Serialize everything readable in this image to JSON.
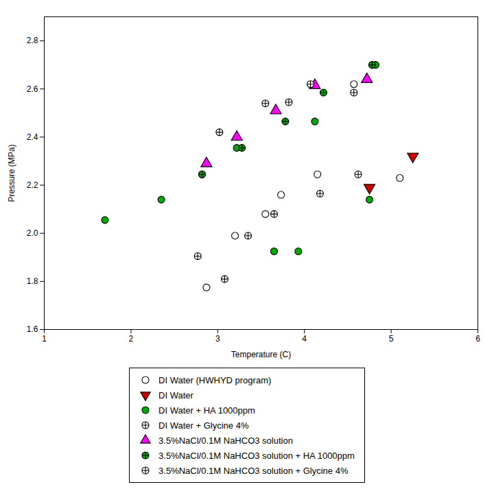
{
  "chart_data": {
    "type": "scatter",
    "xlabel": "Temperature (C)",
    "ylabel": "Pressure (MPa)",
    "xlim": [
      1,
      6
    ],
    "ylim": [
      1.6,
      2.9
    ],
    "xticks": [
      1,
      2,
      3,
      4,
      5,
      6
    ],
    "yticks": [
      1.6,
      1.8,
      {
        "value": 2.0,
        "label": "2.0"
      },
      2.2,
      2.4,
      2.6,
      2.8
    ],
    "grid": false,
    "legend": "bottom",
    "series": [
      {
        "name": "DI Water (HWHYD program)",
        "color": "white",
        "marker": "circle",
        "x": [
          2.87,
          3.2,
          3.55,
          3.73,
          4.15,
          4.57,
          5.1
        ],
        "y": [
          1.775,
          1.99,
          2.08,
          2.16,
          2.245,
          2.62,
          2.23
        ]
      },
      {
        "name": "DI Water",
        "color": "#cc0000",
        "marker": "triangle-down",
        "x": [
          4.75,
          5.25
        ],
        "y": [
          2.19,
          2.32
        ]
      },
      {
        "name": "DI Water + HA 1000ppm",
        "color": "#00aa00",
        "marker": "circle",
        "x": [
          1.7,
          2.35,
          2.82,
          3.22,
          3.65,
          3.93,
          4.12,
          4.75,
          4.82
        ],
        "y": [
          2.055,
          2.14,
          2.245,
          2.355,
          1.925,
          1.925,
          2.465,
          2.14,
          2.7
        ]
      },
      {
        "name": "DI Water + Glycine 4%",
        "color": "white",
        "marker": "circle-cross",
        "x": [
          2.77,
          3.08,
          3.35,
          3.65,
          3.82,
          4.18,
          4.62
        ],
        "y": [
          1.905,
          1.81,
          1.99,
          2.08,
          2.545,
          2.165,
          2.245
        ]
      },
      {
        "name": "3.5%NaCl/0.1M NaHCO3 solution",
        "color": "magenta",
        "marker": "triangle-up",
        "x": [
          2.87,
          3.22,
          3.67,
          4.12,
          4.72
        ],
        "y": [
          2.29,
          2.4,
          2.51,
          2.615,
          2.64
        ]
      },
      {
        "name": "3.5%NaCl/0.1M NaHCO3 solution + HA 1000ppm",
        "color": "#00aa00",
        "marker": "circle-cross",
        "x": [
          2.82,
          3.28,
          3.78,
          4.22,
          4.78
        ],
        "y": [
          2.245,
          2.355,
          2.465,
          2.585,
          2.7
        ]
      },
      {
        "name": "3.5%NaCl/0.1M NaHCO3 solution + Glycine 4%",
        "color": "white",
        "marker": "circle-cross",
        "x": [
          3.02,
          3.55,
          4.07,
          4.57
        ],
        "y": [
          2.42,
          2.54,
          2.62,
          2.585
        ]
      }
    ]
  }
}
